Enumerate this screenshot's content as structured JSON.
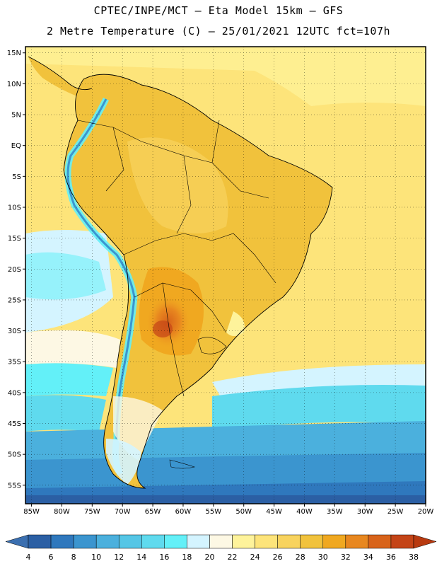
{
  "title_line1": "CPTEC/INPE/MCT –  Eta Model 15km – GFS",
  "title_line2": "2 Metre Temperature (C) – 25/01/2021 12UTC fct=107h",
  "map": {
    "lon_ticks": [
      "85W",
      "80W",
      "75W",
      "70W",
      "65W",
      "60W",
      "55W",
      "50W",
      "45W",
      "40W",
      "35W",
      "30W",
      "25W",
      "20W"
    ],
    "lat_ticks": [
      "15N",
      "10N",
      "5N",
      "EQ",
      "5S",
      "10S",
      "15S",
      "20S",
      "25S",
      "30S",
      "35S",
      "40S",
      "45S",
      "50S",
      "55S"
    ],
    "lon_range": [
      -86,
      -20
    ],
    "lat_range": [
      16,
      -58
    ],
    "grid": "dotted"
  },
  "colorbar": {
    "labels": [
      "4",
      "6",
      "8",
      "10",
      "12",
      "14",
      "16",
      "18",
      "20",
      "22",
      "24",
      "26",
      "28",
      "30",
      "32",
      "34",
      "36",
      "38"
    ],
    "colors": [
      "#2b5fa4",
      "#2f78bd",
      "#3b95cf",
      "#4bb0dd",
      "#55c6e6",
      "#5fdaee",
      "#63f0f8",
      "#d4f4ff",
      "#fdf8e4",
      "#fef39b",
      "#fde47a",
      "#f8d35e",
      "#f1c23c",
      "#f0a820",
      "#e8871f",
      "#d8631a",
      "#c44417"
    ],
    "low_arrow_color": "#3b6fb0",
    "high_arrow_color": "#b83a10"
  }
}
